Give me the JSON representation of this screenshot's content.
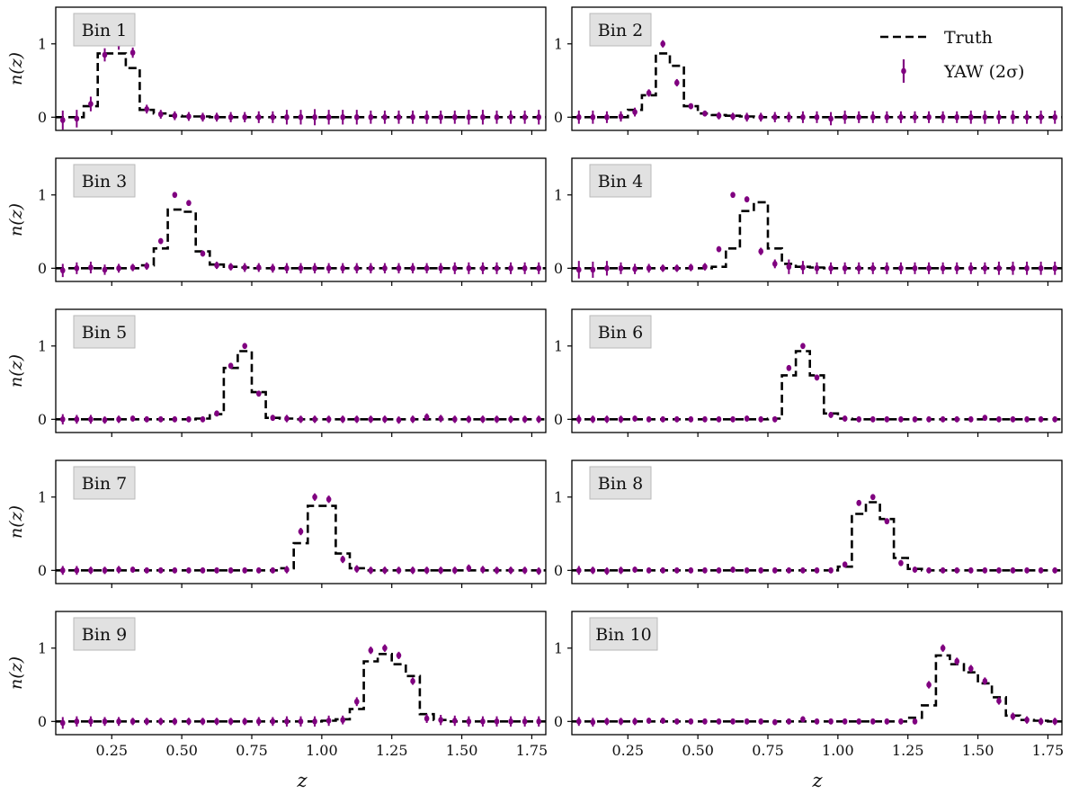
{
  "chart_data": {
    "type": "step+errorbar",
    "layout": "5 rows x 2 columns, shared x axis",
    "xlabel": "z",
    "ylabel": "n(z)",
    "xlim": [
      0.05,
      1.8
    ],
    "ylim": [
      -0.18,
      1.5
    ],
    "xticks": [
      0.25,
      0.5,
      0.75,
      1.0,
      1.25,
      1.5,
      1.75
    ],
    "xtick_labels": [
      "0.25",
      "0.50",
      "0.75",
      "1.00",
      "1.25",
      "1.50",
      "1.75"
    ],
    "yticks": [
      0,
      1
    ],
    "ytick_labels": [
      "0",
      "1"
    ],
    "legend": {
      "position": "top-right of Bin 2 panel",
      "entries": [
        {
          "label": "Truth",
          "style": "black dashed step",
          "color": "#000000"
        },
        {
          "label": "YAW (2σ)",
          "style": "purple points with error bars",
          "color": "#800080"
        }
      ]
    },
    "bin_width": 0.05,
    "bin_centers": [
      0.075,
      0.125,
      0.175,
      0.225,
      0.275,
      0.325,
      0.375,
      0.425,
      0.475,
      0.525,
      0.575,
      0.625,
      0.675,
      0.725,
      0.775,
      0.825,
      0.875,
      0.925,
      0.975,
      1.025,
      1.075,
      1.125,
      1.175,
      1.225,
      1.275,
      1.325,
      1.375,
      1.425,
      1.475,
      1.525,
      1.575,
      1.625,
      1.675,
      1.725,
      1.775
    ],
    "panels": [
      {
        "label": "Bin 1",
        "truth": [
          0,
          0,
          0.15,
          0.87,
          0.87,
          0.67,
          0.1,
          0.05,
          0.02,
          0.01,
          0.01,
          0,
          0,
          0,
          0,
          0,
          0,
          0,
          0,
          0,
          0,
          0,
          0,
          0,
          0,
          0,
          0,
          0,
          0,
          0,
          0,
          0,
          0,
          0,
          0
        ],
        "yaw": [
          -0.04,
          -0.02,
          0.18,
          0.85,
          1.0,
          0.88,
          0.11,
          0.04,
          0.02,
          0.01,
          0,
          0,
          0,
          0,
          0,
          0,
          0,
          0,
          0,
          0,
          0,
          0,
          0,
          0,
          0,
          0,
          0,
          0,
          0,
          0,
          0,
          0,
          0,
          0,
          0
        ],
        "err": [
          0.13,
          0.12,
          0.1,
          0.09,
          0.08,
          0.07,
          0.06,
          0.06,
          0.06,
          0.06,
          0.06,
          0.06,
          0.07,
          0.07,
          0.08,
          0.08,
          0.1,
          0.1,
          0.11,
          0.1,
          0.1,
          0.1,
          0.09,
          0.09,
          0.09,
          0.09,
          0.09,
          0.09,
          0.09,
          0.1,
          0.1,
          0.09,
          0.09,
          0.09,
          0.1
        ]
      },
      {
        "label": "Bin 2",
        "truth": [
          0,
          0,
          0,
          0,
          0.1,
          0.3,
          0.87,
          0.7,
          0.15,
          0.05,
          0.03,
          0.02,
          0.01,
          0,
          0,
          0,
          0,
          0,
          0,
          0,
          0,
          0,
          0,
          0,
          0,
          0,
          0,
          0,
          0,
          0,
          0,
          0,
          0,
          0,
          0
        ],
        "yaw": [
          0,
          0,
          0,
          0.01,
          0.07,
          0.33,
          1.0,
          0.47,
          0.15,
          0.05,
          0.02,
          0.01,
          0,
          0,
          0,
          0,
          0,
          0,
          -0.02,
          0,
          0,
          0,
          0,
          0,
          0,
          0,
          0,
          0,
          0,
          0,
          0,
          0,
          0,
          0,
          0
        ],
        "err": [
          0.09,
          0.09,
          0.08,
          0.07,
          0.06,
          0.05,
          0.05,
          0.05,
          0.04,
          0.04,
          0.05,
          0.05,
          0.06,
          0.06,
          0.07,
          0.07,
          0.08,
          0.08,
          0.09,
          0.09,
          0.08,
          0.08,
          0.08,
          0.08,
          0.08,
          0.08,
          0.08,
          0.08,
          0.09,
          0.09,
          0.09,
          0.09,
          0.09,
          0.09,
          0.09
        ]
      },
      {
        "label": "Bin 3",
        "truth": [
          0,
          0,
          0,
          0,
          0,
          0,
          0.04,
          0.27,
          0.8,
          0.77,
          0.23,
          0.05,
          0.02,
          0.01,
          0,
          0,
          0,
          0,
          0,
          0,
          0,
          0,
          0,
          0,
          0,
          0,
          0,
          0,
          0,
          0,
          0,
          0,
          0,
          0,
          0
        ],
        "yaw": [
          -0.03,
          0,
          0.01,
          -0.02,
          0,
          0.01,
          0.03,
          0.37,
          1.0,
          0.89,
          0.2,
          0.04,
          0.02,
          0.01,
          0.01,
          0,
          0,
          0,
          0,
          0,
          0,
          0,
          0,
          0,
          0,
          0,
          0,
          0,
          0,
          0,
          0,
          0,
          0,
          0,
          0
        ],
        "err": [
          0.09,
          0.08,
          0.08,
          0.07,
          0.06,
          0.05,
          0.05,
          0.04,
          0.04,
          0.04,
          0.04,
          0.05,
          0.05,
          0.06,
          0.06,
          0.06,
          0.07,
          0.07,
          0.07,
          0.07,
          0.07,
          0.07,
          0.07,
          0.07,
          0.07,
          0.07,
          0.07,
          0.07,
          0.08,
          0.08,
          0.08,
          0.08,
          0.08,
          0.08,
          0.08
        ]
      },
      {
        "label": "Bin 4",
        "truth": [
          0,
          0,
          0,
          0,
          0,
          0,
          0,
          0,
          0,
          0,
          0.02,
          0.27,
          0.78,
          0.9,
          0.27,
          0.06,
          0.02,
          0.01,
          0,
          0,
          0,
          0,
          0,
          0,
          0,
          0,
          0,
          0,
          0,
          0,
          0,
          0,
          0,
          0,
          0
        ],
        "yaw": [
          -0.02,
          -0.02,
          0,
          0,
          -0.01,
          0,
          0,
          0,
          0.01,
          0.02,
          0.26,
          1.0,
          0.94,
          0.23,
          0.06,
          0.02,
          0.01,
          0,
          0,
          0,
          0,
          0,
          0,
          0,
          0,
          0,
          0,
          0,
          0,
          0,
          0,
          0,
          0,
          0,
          0
        ],
        "err": [
          0.12,
          0.11,
          0.1,
          0.08,
          0.07,
          0.06,
          0.05,
          0.05,
          0.05,
          0.05,
          0.04,
          0.04,
          0.04,
          0.05,
          0.06,
          0.1,
          0.09,
          0.08,
          0.08,
          0.08,
          0.08,
          0.08,
          0.08,
          0.08,
          0.08,
          0.08,
          0.08,
          0.08,
          0.08,
          0.08,
          0.09,
          0.09,
          0.09,
          0.09,
          0.09
        ]
      },
      {
        "label": "Bin 5",
        "truth": [
          0,
          0,
          0,
          0,
          0,
          0,
          0,
          0,
          0,
          0,
          0.01,
          0.07,
          0.7,
          0.93,
          0.37,
          0.02,
          0.01,
          0,
          0,
          0,
          0,
          0,
          0,
          0,
          0,
          0,
          0,
          0,
          0,
          0,
          0,
          0,
          0,
          0,
          0
        ],
        "yaw": [
          0,
          0,
          0,
          -0.01,
          0,
          0.01,
          0,
          0,
          0,
          0,
          0,
          0.08,
          0.73,
          1.0,
          0.35,
          0.02,
          0.01,
          0,
          0,
          0,
          0,
          0,
          0,
          0,
          -0.01,
          0,
          0.03,
          0.01,
          0,
          0,
          0,
          0,
          0,
          0,
          0
        ],
        "err": [
          0.07,
          0.06,
          0.06,
          0.05,
          0.05,
          0.04,
          0.04,
          0.04,
          0.04,
          0.04,
          0.04,
          0.04,
          0.04,
          0.04,
          0.04,
          0.04,
          0.05,
          0.05,
          0.05,
          0.05,
          0.05,
          0.05,
          0.05,
          0.05,
          0.05,
          0.05,
          0.05,
          0.05,
          0.05,
          0.05,
          0.05,
          0.05,
          0.05,
          0.05,
          0.05
        ]
      },
      {
        "label": "Bin 6",
        "truth": [
          0,
          0,
          0,
          0,
          0,
          0,
          0,
          0,
          0,
          0,
          0,
          0,
          0,
          0,
          0.01,
          0.6,
          0.93,
          0.6,
          0.08,
          0.01,
          0,
          0,
          0,
          0,
          0,
          0,
          0,
          0,
          0,
          0,
          0,
          0,
          0,
          0,
          0
        ],
        "yaw": [
          0,
          0,
          0,
          0,
          0.01,
          0,
          0,
          0,
          0,
          0,
          0,
          0,
          0.01,
          0,
          0,
          0.7,
          1.0,
          0.57,
          0.06,
          0.01,
          0,
          0,
          0,
          0,
          0,
          0,
          0,
          0,
          0,
          0.02,
          0,
          0,
          0,
          0,
          0
        ],
        "err": [
          0.06,
          0.05,
          0.05,
          0.05,
          0.04,
          0.04,
          0.04,
          0.04,
          0.04,
          0.04,
          0.04,
          0.04,
          0.04,
          0.04,
          0.04,
          0.04,
          0.04,
          0.04,
          0.04,
          0.04,
          0.04,
          0.04,
          0.04,
          0.04,
          0.04,
          0.04,
          0.04,
          0.04,
          0.04,
          0.04,
          0.04,
          0.04,
          0.04,
          0.04,
          0.04
        ]
      },
      {
        "label": "Bin 7",
        "truth": [
          0,
          0,
          0,
          0,
          0,
          0,
          0,
          0,
          0,
          0,
          0,
          0,
          0,
          0,
          0,
          0,
          0.03,
          0.37,
          0.88,
          0.88,
          0.23,
          0.03,
          0,
          0,
          0,
          0,
          0,
          0,
          0,
          0,
          0,
          0,
          0,
          0,
          0
        ],
        "yaw": [
          0,
          0,
          0,
          0,
          0.01,
          0.01,
          0,
          0,
          0,
          0,
          0,
          0,
          0,
          0,
          0,
          0,
          0.01,
          0.53,
          1.0,
          0.97,
          0.15,
          0.02,
          0,
          0,
          0,
          0,
          0,
          0,
          0,
          0.03,
          0.01,
          0,
          0,
          0,
          -0.01
        ],
        "err": [
          0.06,
          0.06,
          0.05,
          0.05,
          0.05,
          0.04,
          0.04,
          0.04,
          0.04,
          0.04,
          0.04,
          0.04,
          0.04,
          0.04,
          0.04,
          0.04,
          0.05,
          0.05,
          0.05,
          0.05,
          0.05,
          0.05,
          0.05,
          0.05,
          0.05,
          0.05,
          0.05,
          0.05,
          0.05,
          0.05,
          0.05,
          0.05,
          0.05,
          0.05,
          0.05
        ]
      },
      {
        "label": "Bin 8",
        "truth": [
          0,
          0,
          0,
          0,
          0,
          0,
          0,
          0,
          0,
          0,
          0,
          0,
          0,
          0,
          0,
          0,
          0,
          0,
          0,
          0.05,
          0.77,
          0.93,
          0.7,
          0.17,
          0.02,
          0,
          0,
          0,
          0,
          0,
          0,
          0,
          0,
          0,
          0
        ],
        "yaw": [
          0,
          0,
          -0.01,
          0,
          0.01,
          0,
          0,
          0,
          0,
          0,
          0,
          0.01,
          0,
          0,
          0,
          0,
          0,
          0,
          0,
          0.08,
          0.92,
          1.0,
          0.67,
          0.1,
          0.01,
          0,
          0,
          0,
          0,
          0,
          0,
          0,
          0,
          0,
          0
        ],
        "err": [
          0.06,
          0.05,
          0.05,
          0.05,
          0.04,
          0.04,
          0.04,
          0.04,
          0.04,
          0.04,
          0.04,
          0.04,
          0.04,
          0.04,
          0.04,
          0.04,
          0.04,
          0.04,
          0.04,
          0.04,
          0.04,
          0.04,
          0.04,
          0.04,
          0.04,
          0.04,
          0.04,
          0.04,
          0.04,
          0.04,
          0.04,
          0.04,
          0.04,
          0.04,
          0.04
        ]
      },
      {
        "label": "Bin 9",
        "truth": [
          0,
          0,
          0,
          0,
          0,
          0,
          0,
          0,
          0,
          0,
          0,
          0,
          0,
          0,
          0,
          0,
          0,
          0,
          0,
          0.01,
          0.03,
          0.17,
          0.82,
          0.92,
          0.78,
          0.62,
          0.1,
          0.02,
          0,
          0,
          0,
          0,
          0,
          0,
          0
        ],
        "yaw": [
          -0.02,
          0,
          0,
          0,
          0,
          0,
          0,
          0,
          0,
          0,
          0,
          0,
          0,
          0,
          0,
          0,
          0,
          0,
          0,
          0.01,
          0.02,
          0.27,
          0.97,
          1.0,
          0.9,
          0.55,
          0.04,
          0.02,
          0.01,
          0,
          0,
          0,
          0,
          0,
          0
        ],
        "err": [
          0.08,
          0.07,
          0.07,
          0.06,
          0.06,
          0.05,
          0.05,
          0.05,
          0.05,
          0.05,
          0.05,
          0.05,
          0.05,
          0.05,
          0.06,
          0.06,
          0.07,
          0.07,
          0.07,
          0.07,
          0.06,
          0.06,
          0.05,
          0.05,
          0.05,
          0.05,
          0.06,
          0.07,
          0.07,
          0.07,
          0.07,
          0.07,
          0.07,
          0.07,
          0.07
        ]
      },
      {
        "label": "Bin 10",
        "truth": [
          0,
          0,
          0,
          0,
          0,
          0,
          0,
          0,
          0,
          0,
          0,
          0,
          0,
          0,
          0,
          0,
          0,
          0,
          0,
          0,
          0,
          0,
          0,
          0,
          0.05,
          0.22,
          0.9,
          0.78,
          0.67,
          0.52,
          0.33,
          0.08,
          0.02,
          0.01,
          0
        ],
        "yaw": [
          0,
          -0.01,
          0,
          0,
          0,
          0.01,
          0.01,
          0,
          0,
          0,
          0,
          0,
          0,
          0,
          -0.01,
          0,
          0.03,
          0,
          0,
          0,
          0,
          0,
          0,
          0,
          0,
          0.5,
          1.0,
          0.82,
          0.72,
          0.55,
          0.28,
          0.07,
          0.02,
          0,
          0
        ],
        "err": [
          0.06,
          0.06,
          0.05,
          0.05,
          0.05,
          0.04,
          0.04,
          0.04,
          0.04,
          0.04,
          0.04,
          0.04,
          0.04,
          0.04,
          0.04,
          0.04,
          0.04,
          0.04,
          0.04,
          0.04,
          0.04,
          0.04,
          0.04,
          0.04,
          0.04,
          0.05,
          0.05,
          0.05,
          0.05,
          0.05,
          0.05,
          0.05,
          0.05,
          0.05,
          0.05
        ]
      }
    ]
  }
}
